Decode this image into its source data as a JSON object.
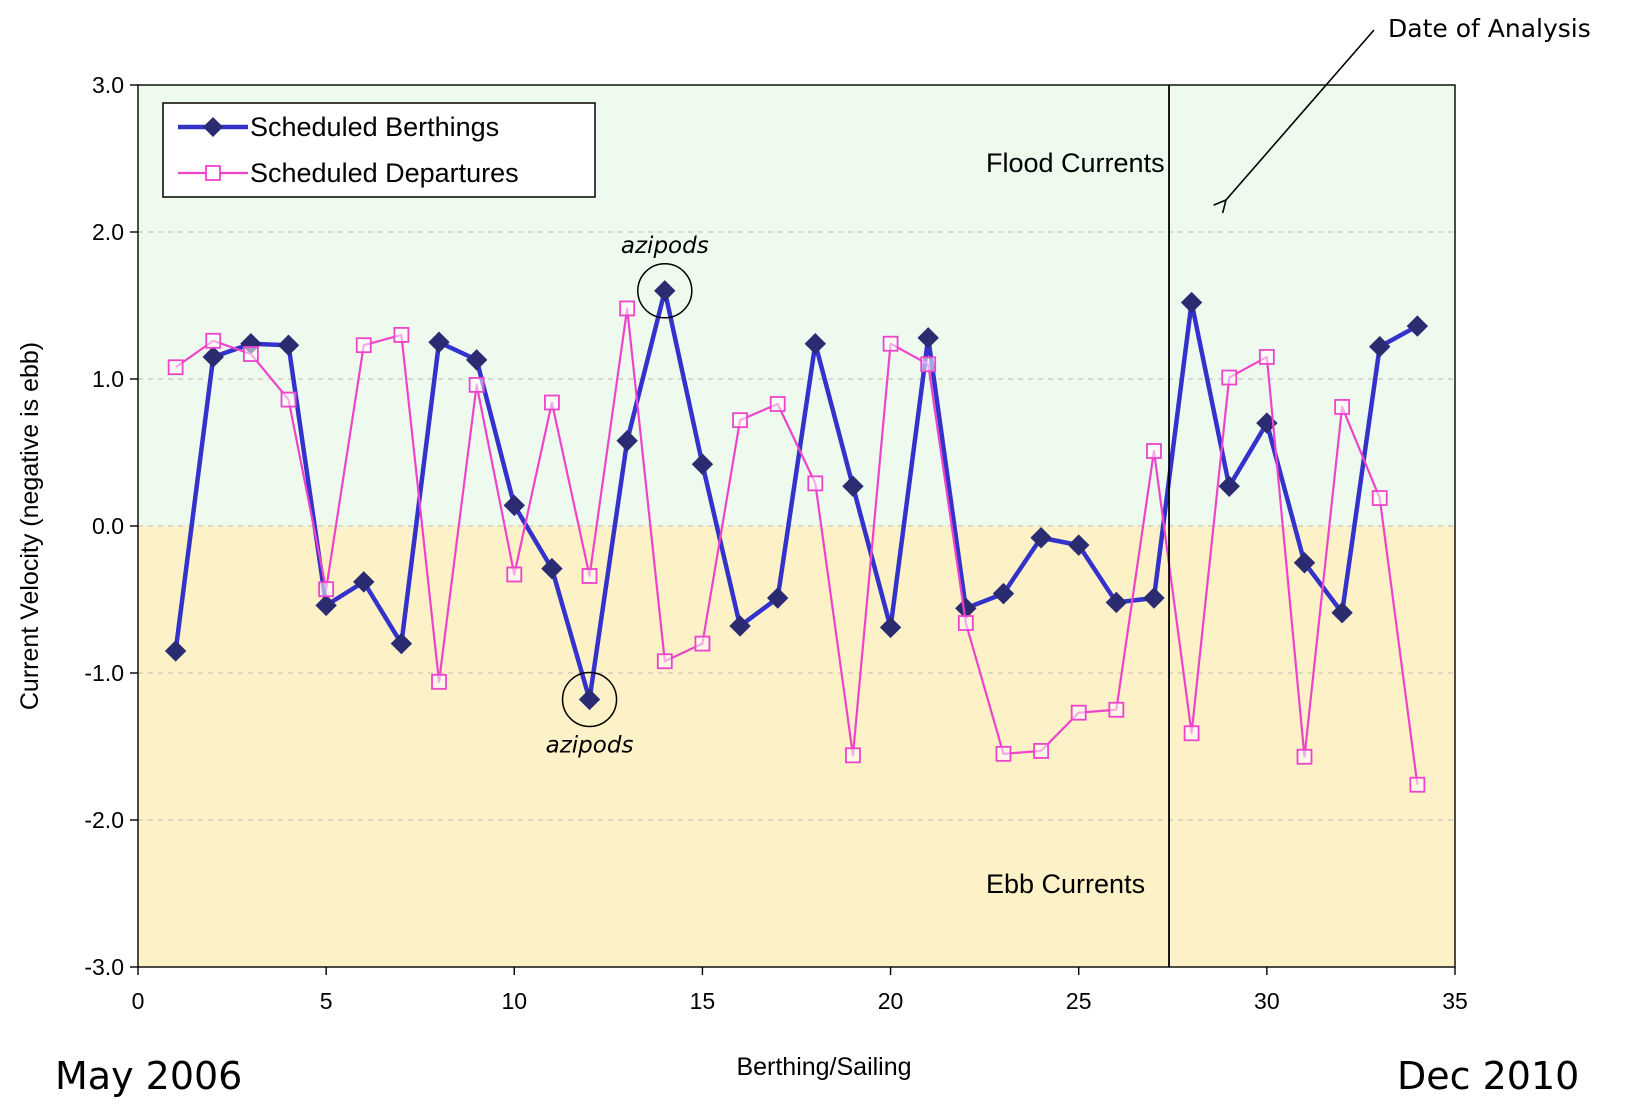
{
  "chart_data": {
    "type": "line",
    "xlabel": "Berthing/Sailing",
    "ylabel": "Current Velocity (negative is ebb)",
    "xlim": [
      0,
      35
    ],
    "ylim": [
      -3,
      3
    ],
    "x_ticks": [
      "0",
      "5",
      "10",
      "15",
      "20",
      "25",
      "30",
      "35"
    ],
    "y_ticks": [
      "-3.0",
      "-2.0",
      "-1.0",
      "0.0",
      "1.0",
      "2.0",
      "3.0"
    ],
    "grid": "horizontal dashed",
    "legend_position": "top-left",
    "regions": [
      {
        "label": "Flood Currents",
        "y_range": [
          0,
          3
        ],
        "color": "#eefaee"
      },
      {
        "label": "Ebb Currents",
        "y_range": [
          -3,
          0
        ],
        "color": "#fdf1c8"
      }
    ],
    "vertical_line": {
      "x": 27.4,
      "label": "Date of Analysis"
    },
    "annotations": [
      {
        "text": "azipods",
        "x": 14,
        "y": 1.6
      },
      {
        "text": "azipods",
        "x": 12,
        "y": -1.18
      }
    ],
    "series": [
      {
        "name": "Scheduled Berthings",
        "color": "#3333cc",
        "marker_color": "#2b2b72",
        "marker": "filled-diamond",
        "x": [
          1,
          2,
          3,
          4,
          5,
          6,
          7,
          8,
          9,
          10,
          11,
          12,
          13,
          14,
          15,
          16,
          17,
          18,
          19,
          20,
          21,
          22,
          23,
          24,
          25,
          26,
          27,
          28,
          29,
          30,
          31,
          32,
          33,
          34
        ],
        "values": [
          -0.85,
          1.15,
          1.24,
          1.23,
          -0.54,
          -0.38,
          -0.8,
          1.25,
          1.13,
          0.14,
          -0.29,
          -1.18,
          0.58,
          1.6,
          0.42,
          -0.68,
          -0.49,
          1.24,
          0.27,
          -0.69,
          1.28,
          -0.56,
          -0.46,
          -0.08,
          -0.13,
          -0.52,
          -0.49,
          1.52,
          0.27,
          0.7,
          -0.25,
          -0.59,
          1.22,
          1.36
        ]
      },
      {
        "name": "Scheduled Departures",
        "color": "#ee44cc",
        "marker": "open-square",
        "x": [
          1,
          2,
          3,
          4,
          5,
          6,
          7,
          8,
          9,
          10,
          11,
          12,
          13,
          14,
          15,
          16,
          17,
          18,
          19,
          20,
          21,
          22,
          23,
          24,
          25,
          26,
          27,
          28,
          29,
          30,
          31,
          32,
          33,
          34
        ],
        "values": [
          1.08,
          1.26,
          1.17,
          0.86,
          -0.43,
          1.23,
          1.3,
          -1.06,
          0.96,
          -0.33,
          0.84,
          -0.34,
          1.48,
          -0.92,
          -0.8,
          0.72,
          0.83,
          0.29,
          -1.56,
          1.24,
          1.1,
          -0.66,
          -1.55,
          -1.53,
          -1.27,
          -1.25,
          0.51,
          -1.41,
          1.01,
          1.15,
          -1.57,
          0.81,
          0.19,
          -1.76
        ]
      }
    ]
  },
  "captions": {
    "start": "May 2006",
    "end": "Dec 2010"
  }
}
